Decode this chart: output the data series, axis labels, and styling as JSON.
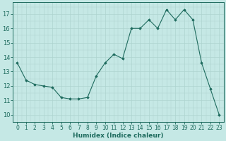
{
  "x": [
    0,
    1,
    2,
    3,
    4,
    5,
    6,
    7,
    8,
    9,
    10,
    11,
    12,
    13,
    14,
    15,
    16,
    17,
    18,
    19,
    20,
    21,
    22,
    23
  ],
  "y": [
    13.6,
    12.4,
    12.1,
    12.0,
    11.9,
    11.2,
    11.1,
    11.1,
    11.2,
    12.7,
    13.6,
    14.2,
    13.9,
    16.0,
    16.0,
    16.6,
    16.0,
    17.3,
    16.6,
    17.3,
    16.6,
    13.6,
    11.8,
    10.0
  ],
  "bg_color": "#c5e8e5",
  "line_color": "#1e6b5e",
  "marker_color": "#1e6b5e",
  "grid_color_major": "#afd4d0",
  "xlabel": "Humidex (Indice chaleur)",
  "ylim": [
    9.5,
    17.8
  ],
  "xlim": [
    -0.5,
    23.5
  ],
  "yticks": [
    10,
    11,
    12,
    13,
    14,
    15,
    16,
    17
  ],
  "xticks": [
    0,
    1,
    2,
    3,
    4,
    5,
    6,
    7,
    8,
    9,
    10,
    11,
    12,
    13,
    14,
    15,
    16,
    17,
    18,
    19,
    20,
    21,
    22,
    23
  ],
  "tick_color": "#1e6b5e",
  "label_fontsize": 5.5,
  "xlabel_fontsize": 6.5
}
